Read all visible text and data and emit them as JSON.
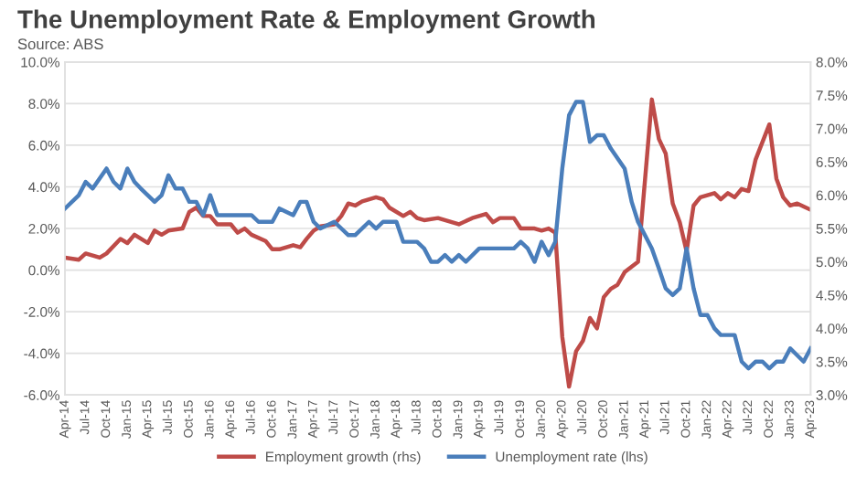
{
  "chart_data": {
    "type": "line",
    "title": "The Unemployment Rate & Employment Growth",
    "subtitle": "Source: ABS",
    "series": [
      {
        "name": "Employment growth (rhs)",
        "color": "#be4b48",
        "axis": "y",
        "x": [
          "2014-04",
          "2014-06",
          "2014-07",
          "2014-09",
          "2014-10",
          "2014-12",
          "2015-01",
          "2015-02",
          "2015-04",
          "2015-05",
          "2015-06",
          "2015-07",
          "2015-09",
          "2015-10",
          "2015-11",
          "2015-12",
          "2016-01",
          "2016-02",
          "2016-04",
          "2016-05",
          "2016-06",
          "2016-07",
          "2016-09",
          "2016-10",
          "2016-11",
          "2017-01",
          "2017-02",
          "2017-03",
          "2017-04",
          "2017-05",
          "2017-07",
          "2017-08",
          "2017-09",
          "2017-10",
          "2017-11",
          "2018-01",
          "2018-02",
          "2018-03",
          "2018-05",
          "2018-06",
          "2018-07",
          "2018-08",
          "2018-10",
          "2019-01",
          "2019-03",
          "2019-05",
          "2019-06",
          "2019-07",
          "2019-09",
          "2019-10",
          "2019-12",
          "2020-01",
          "2020-02",
          "2020-03",
          "2020-04",
          "2020-05",
          "2020-06",
          "2020-07",
          "2020-08",
          "2020-09",
          "2020-10",
          "2020-11",
          "2020-12",
          "2021-01",
          "2021-03",
          "2021-05",
          "2021-06",
          "2021-07",
          "2021-08",
          "2021-09",
          "2021-10",
          "2021-11",
          "2021-12",
          "2022-02",
          "2022-03",
          "2022-04",
          "2022-05",
          "2022-06",
          "2022-07",
          "2022-08",
          "2022-10",
          "2022-11",
          "2022-12",
          "2023-01",
          "2023-02",
          "2023-04"
        ],
        "values": [
          0.6,
          0.5,
          0.8,
          0.6,
          0.8,
          1.5,
          1.3,
          1.7,
          1.3,
          1.9,
          1.7,
          1.9,
          2.0,
          2.8,
          3.0,
          2.6,
          2.6,
          2.2,
          2.2,
          1.8,
          2.0,
          1.7,
          1.4,
          1.0,
          1.0,
          1.2,
          1.1,
          1.5,
          1.9,
          2.1,
          2.2,
          2.6,
          3.2,
          3.1,
          3.3,
          3.5,
          3.4,
          3.0,
          2.6,
          2.8,
          2.5,
          2.4,
          2.5,
          2.2,
          2.5,
          2.7,
          2.3,
          2.5,
          2.5,
          2.0,
          2.0,
          1.9,
          2.0,
          1.8,
          -3.2,
          -5.6,
          -3.9,
          -3.4,
          -2.3,
          -2.8,
          -1.3,
          -0.9,
          -0.7,
          -0.1,
          0.4,
          8.2,
          6.3,
          5.6,
          3.2,
          2.3,
          0.9,
          3.1,
          3.5,
          3.7,
          3.4,
          3.7,
          3.5,
          3.9,
          3.8,
          5.3,
          7.0,
          4.4,
          3.5,
          3.1,
          3.2,
          2.9
        ]
      },
      {
        "name": "Unemployment rate (lhs)",
        "color": "#4a7ebb",
        "axis": "y2",
        "x": [
          "2014-04",
          "2014-06",
          "2014-07",
          "2014-08",
          "2014-10",
          "2014-11",
          "2014-12",
          "2015-01",
          "2015-02",
          "2015-03",
          "2015-05",
          "2015-06",
          "2015-07",
          "2015-08",
          "2015-09",
          "2015-10",
          "2015-11",
          "2015-12",
          "2016-01",
          "2016-02",
          "2016-07",
          "2016-08",
          "2016-10",
          "2016-11",
          "2017-01",
          "2017-02",
          "2017-03",
          "2017-04",
          "2017-05",
          "2017-07",
          "2017-09",
          "2017-10",
          "2017-12",
          "2018-01",
          "2018-02",
          "2018-04",
          "2018-05",
          "2018-07",
          "2018-08",
          "2018-09",
          "2018-10",
          "2018-11",
          "2018-12",
          "2019-01",
          "2019-02",
          "2019-04",
          "2019-09",
          "2019-10",
          "2019-11",
          "2019-12",
          "2020-01",
          "2020-02",
          "2020-03",
          "2020-04",
          "2020-05",
          "2020-06",
          "2020-07",
          "2020-08",
          "2020-09",
          "2020-10",
          "2020-11",
          "2021-01",
          "2021-02",
          "2021-03",
          "2021-05",
          "2021-06",
          "2021-07",
          "2021-08",
          "2021-09",
          "2021-10",
          "2021-11",
          "2021-12",
          "2022-01",
          "2022-02",
          "2022-03",
          "2022-05",
          "2022-06",
          "2022-07",
          "2022-08",
          "2022-09",
          "2022-10",
          "2022-11",
          "2022-12",
          "2023-01",
          "2023-03",
          "2023-04"
        ],
        "values": [
          5.8,
          6.0,
          6.2,
          6.1,
          6.4,
          6.2,
          6.1,
          6.4,
          6.2,
          6.1,
          5.9,
          6.0,
          6.3,
          6.1,
          6.1,
          5.9,
          5.9,
          5.7,
          6.0,
          5.7,
          5.7,
          5.6,
          5.6,
          5.8,
          5.7,
          5.9,
          5.9,
          5.6,
          5.5,
          5.6,
          5.4,
          5.4,
          5.6,
          5.5,
          5.6,
          5.6,
          5.3,
          5.3,
          5.2,
          5.0,
          5.0,
          5.1,
          5.0,
          5.1,
          5.0,
          5.2,
          5.2,
          5.3,
          5.2,
          5.0,
          5.3,
          5.1,
          5.3,
          6.4,
          7.2,
          7.4,
          7.4,
          6.8,
          6.9,
          6.9,
          6.7,
          6.4,
          5.9,
          5.6,
          5.2,
          4.9,
          4.6,
          4.5,
          4.6,
          5.2,
          4.6,
          4.2,
          4.2,
          4.0,
          3.9,
          3.9,
          3.5,
          3.4,
          3.5,
          3.5,
          3.4,
          3.5,
          3.5,
          3.7,
          3.5,
          3.7
        ]
      }
    ],
    "ylim": [
      -6,
      10
    ],
    "yticks": [
      {
        "value": -6,
        "label": "-6.0%"
      },
      {
        "value": -4,
        "label": "-4.0%"
      },
      {
        "value": -2,
        "label": "-2.0%"
      },
      {
        "value": 0,
        "label": "0.0%"
      },
      {
        "value": 2,
        "label": "2.0%"
      },
      {
        "value": 4,
        "label": "4.0%"
      },
      {
        "value": 6,
        "label": "6.0%"
      },
      {
        "value": 8,
        "label": "8.0%"
      },
      {
        "value": 10,
        "label": "10.0%"
      }
    ],
    "y2lim": [
      3,
      8
    ],
    "y2ticks": [
      {
        "value": 3,
        "label": "3.0%"
      },
      {
        "value": 3.5,
        "label": "3.5%"
      },
      {
        "value": 4,
        "label": "4.0%"
      },
      {
        "value": 4.5,
        "label": "4.5%"
      },
      {
        "value": 5,
        "label": "5.0%"
      },
      {
        "value": 5.5,
        "label": "5.5%"
      },
      {
        "value": 6,
        "label": "6.0%"
      },
      {
        "value": 6.5,
        "label": "6.5%"
      },
      {
        "value": 7,
        "label": "7.0%"
      },
      {
        "value": 7.5,
        "label": "7.5%"
      },
      {
        "value": 8,
        "label": "8.0%"
      }
    ],
    "xlim": [
      "2014-04",
      "2023-04"
    ],
    "xticks": [
      {
        "value": "2014-04",
        "label": "Apr-14"
      },
      {
        "value": "2014-07",
        "label": "Jul-14"
      },
      {
        "value": "2014-10",
        "label": "Oct-14"
      },
      {
        "value": "2015-01",
        "label": "Jan-15"
      },
      {
        "value": "2015-04",
        "label": "Apr-15"
      },
      {
        "value": "2015-07",
        "label": "Jul-15"
      },
      {
        "value": "2015-10",
        "label": "Oct-15"
      },
      {
        "value": "2016-01",
        "label": "Jan-16"
      },
      {
        "value": "2016-04",
        "label": "Apr-16"
      },
      {
        "value": "2016-07",
        "label": "Jul-16"
      },
      {
        "value": "2016-10",
        "label": "Oct-16"
      },
      {
        "value": "2017-01",
        "label": "Jan-17"
      },
      {
        "value": "2017-04",
        "label": "Apr-17"
      },
      {
        "value": "2017-07",
        "label": "Jul-17"
      },
      {
        "value": "2017-10",
        "label": "Oct-17"
      },
      {
        "value": "2018-01",
        "label": "Jan-18"
      },
      {
        "value": "2018-04",
        "label": "Apr-18"
      },
      {
        "value": "2018-07",
        "label": "Jul-18"
      },
      {
        "value": "2018-10",
        "label": "Oct-18"
      },
      {
        "value": "2019-01",
        "label": "Jan-19"
      },
      {
        "value": "2019-04",
        "label": "Apr-19"
      },
      {
        "value": "2019-07",
        "label": "Jul-19"
      },
      {
        "value": "2019-10",
        "label": "Oct-19"
      },
      {
        "value": "2020-01",
        "label": "Jan-20"
      },
      {
        "value": "2020-04",
        "label": "Apr-20"
      },
      {
        "value": "2020-07",
        "label": "Jul-20"
      },
      {
        "value": "2020-10",
        "label": "Oct-20"
      },
      {
        "value": "2021-01",
        "label": "Jan-21"
      },
      {
        "value": "2021-04",
        "label": "Apr-21"
      },
      {
        "value": "2021-07",
        "label": "Jul-21"
      },
      {
        "value": "2021-10",
        "label": "Oct-21"
      },
      {
        "value": "2022-01",
        "label": "Jan-22"
      },
      {
        "value": "2022-04",
        "label": "Apr-22"
      },
      {
        "value": "2022-07",
        "label": "Jul-22"
      },
      {
        "value": "2022-10",
        "label": "Oct-22"
      },
      {
        "value": "2023-01",
        "label": "Jan-23"
      },
      {
        "value": "2023-04",
        "label": "Apr-23"
      }
    ],
    "grid": "y",
    "legend": "bottom",
    "line_style": "solid",
    "marker": "none"
  }
}
